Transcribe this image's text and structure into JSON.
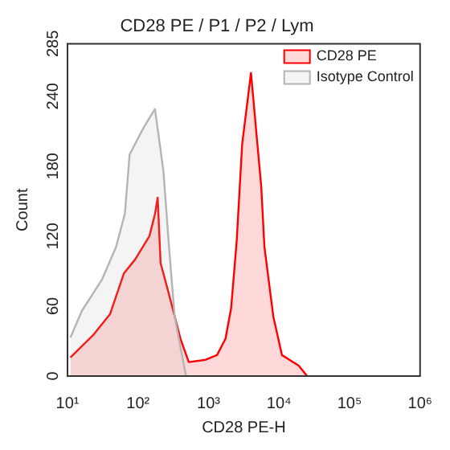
{
  "chart_data": {
    "type": "area",
    "title": "CD28 PE / P1 / P2 / Lym",
    "xlabel": "CD28 PE-H",
    "ylabel": "Count",
    "log": "x",
    "xlim": [
      10,
      1000000
    ],
    "xticks": [
      {
        "value": 10,
        "label": "10¹"
      },
      {
        "value": 100,
        "label": "10²"
      },
      {
        "value": 1000,
        "label": "10³"
      },
      {
        "value": 10000,
        "label": "10⁴"
      },
      {
        "value": 100000,
        "label": "10⁵"
      },
      {
        "value": 1000000,
        "label": "10⁶"
      }
    ],
    "ylim": [
      0,
      285
    ],
    "yticks": [
      0,
      60,
      120,
      180,
      240,
      285
    ],
    "grid": false,
    "legend": "top right",
    "marker": "none",
    "series": [
      {
        "name": "CD28 PE",
        "color": "#ff0000",
        "x": [
          11,
          23,
          40,
          63,
          91,
          145,
          174,
          190,
          209,
          275,
          400,
          525,
          910,
          1320,
          1740,
          2090,
          2510,
          3000,
          4000,
          4700,
          5600,
          6200,
          8300,
          11000,
          19000,
          25000
        ],
        "values": [
          16,
          35,
          53,
          88,
          100,
          120,
          139,
          153,
          97,
          70,
          32,
          12,
          14,
          18,
          32,
          58,
          116,
          199,
          260,
          213,
          162,
          111,
          51,
          18,
          9,
          0
        ]
      },
      {
        "name": "Isotype Control",
        "color": "#b4b4b4",
        "x": [
          11,
          16,
          31,
          49,
          65,
          76,
          120,
          174,
          229,
          275,
          331,
          480
        ],
        "values": [
          33,
          56,
          83,
          111,
          139,
          190,
          213,
          229,
          176,
          111,
          51,
          0
        ]
      }
    ]
  }
}
